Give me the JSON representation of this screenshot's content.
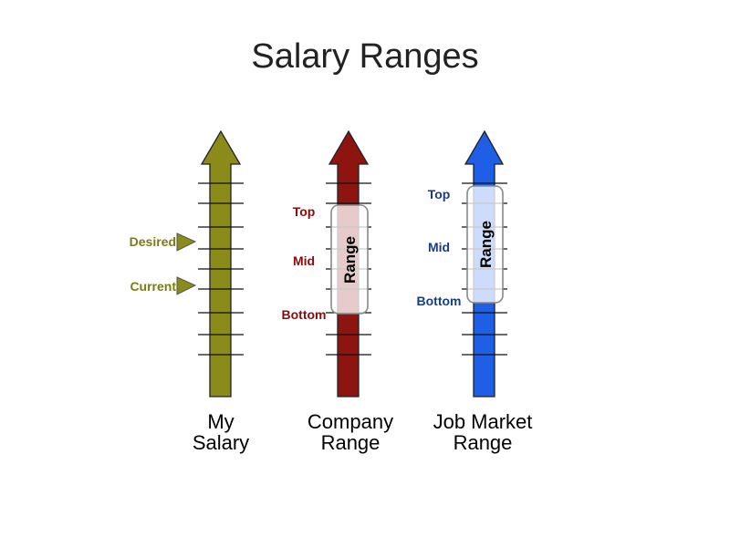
{
  "title": "Salary Ranges",
  "colors": {
    "my_salary": "#8b8b1a",
    "company": "#8e1410",
    "job_market": "#1f5fe6",
    "my_label": "#7b7b12",
    "company_label": "#8b0a0a",
    "job_label": "#163f82"
  },
  "my_salary": {
    "caption_line1": "My",
    "caption_line2": "Salary",
    "markers": [
      {
        "label": "Desired"
      },
      {
        "label": "Current"
      }
    ]
  },
  "company_range": {
    "caption_line1": "Company",
    "caption_line2": "Range",
    "box_label": "Range",
    "top": "Top",
    "mid": "Mid",
    "bottom": "Bottom"
  },
  "job_market_range": {
    "caption_line1": "Job Market",
    "caption_line2": "Range",
    "box_label": "Range",
    "top": "Top",
    "mid": "Mid",
    "bottom": "Bottom"
  }
}
